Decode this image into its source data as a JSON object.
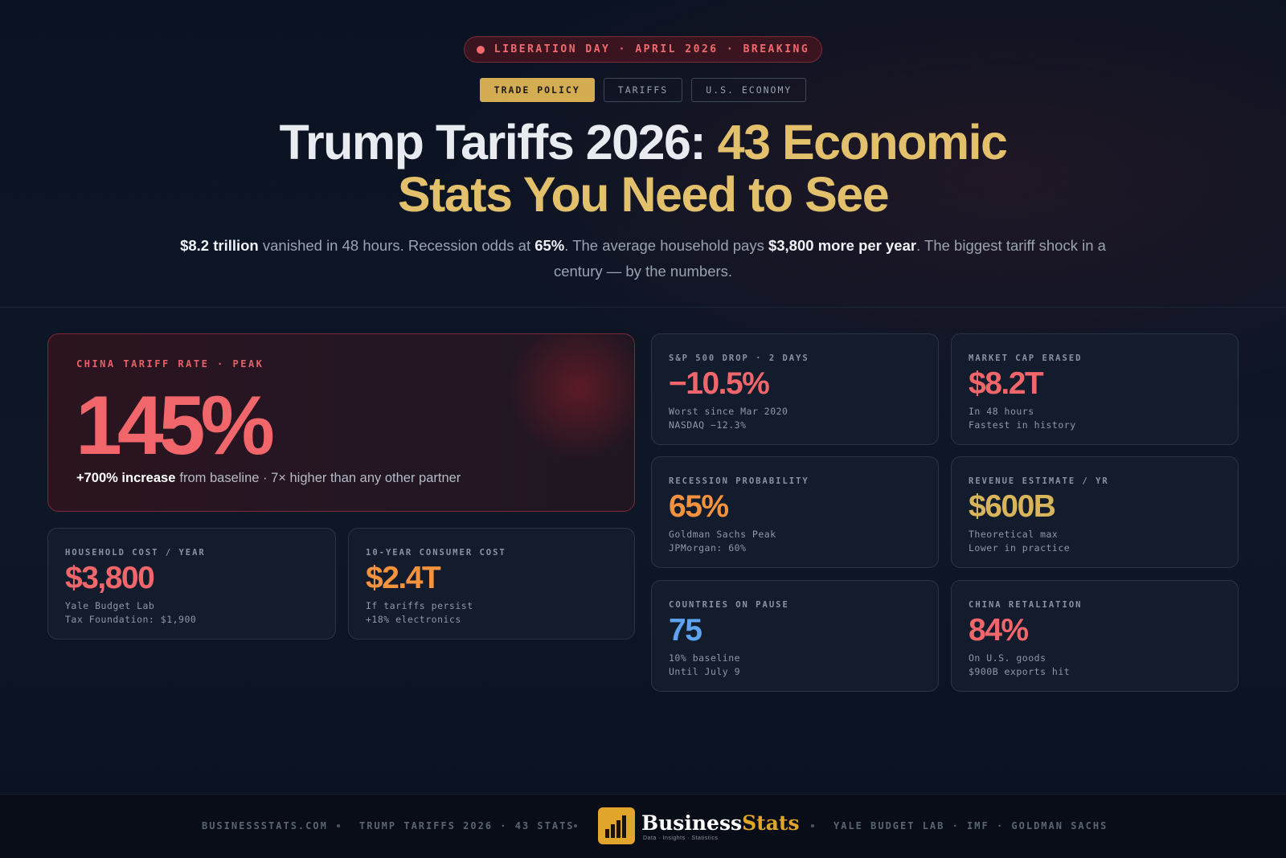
{
  "badge": "LIBERATION DAY · APRIL 2026 · BREAKING",
  "tags": [
    "TRADE POLICY",
    "TARIFFS",
    "U.S. ECONOMY"
  ],
  "title": {
    "plain": "Trump Tariffs 2026: ",
    "highlight": "43 Economic Stats You Need to See"
  },
  "subtitle": [
    {
      "text": "$8.2 trillion",
      "strong": true
    },
    {
      "text": "vanished in 48 hours. Recession odds at",
      "strong": false
    },
    {
      "text": "65%",
      "strong": true
    },
    {
      "text": ". The average household pays",
      "strong": false
    },
    {
      "text": "$3,800 more per year",
      "strong": true
    },
    {
      "text": ". The biggest tariff shock in a century — by the numbers.",
      "strong": false
    }
  ],
  "hero": {
    "label": "CHINA TARIFF RATE · PEAK",
    "value": "145%",
    "note_strong": "+700% increase",
    "note": "from baseline · 7× higher than any other partner"
  },
  "cards": [
    {
      "label": "HOUSEHOLD COST / YEAR",
      "value": "$3,800",
      "color": "#f0666b",
      "lines": [
        "Yale Budget Lab",
        "Tax Foundation: $1,900"
      ]
    },
    {
      "label": "10-YEAR CONSUMER COST",
      "value": "$2.4T",
      "color": "#f5923e",
      "lines": [
        "If tariffs persist",
        "+18% electronics"
      ]
    },
    {
      "label": "S&P 500 DROP · 2 DAYS",
      "value": "−10.5%",
      "color": "#f0666b",
      "lines": [
        "Worst since Mar 2020",
        "NASDAQ −12.3%"
      ]
    },
    {
      "label": "MARKET CAP ERASED",
      "value": "$8.2T",
      "color": "#f0666b",
      "lines": [
        "In 48 hours",
        "Fastest in history"
      ]
    },
    {
      "label": "RECESSION PROBABILITY",
      "value": "65%",
      "color": "#f5923e",
      "lines": [
        "Goldman Sachs Peak",
        "JPMorgan: 60%"
      ]
    },
    {
      "label": "REVENUE ESTIMATE / YR",
      "value": "$600B",
      "color": "#d8b45a",
      "lines": [
        "Theoretical max",
        "Lower in practice"
      ]
    },
    {
      "label": "COUNTRIES ON PAUSE",
      "value": "75",
      "color": "#5ea3f0",
      "lines": [
        "10% baseline",
        "Until July 9"
      ]
    },
    {
      "label": "CHINA RETALIATION",
      "value": "84%",
      "color": "#f0666b",
      "lines": [
        "On U.S. goods",
        "$900B exports hit"
      ]
    }
  ],
  "footer": {
    "left": [
      "BUSINESSSTATS.COM",
      "TRUMP TARIFFS 2026 · 43 STATS"
    ],
    "brand": {
      "name": "Business",
      "accent": "Stats",
      "tagline": "Data · Insights · Statistics"
    },
    "right": "YALE BUDGET LAB · IMF · GOLDMAN SACHS"
  }
}
